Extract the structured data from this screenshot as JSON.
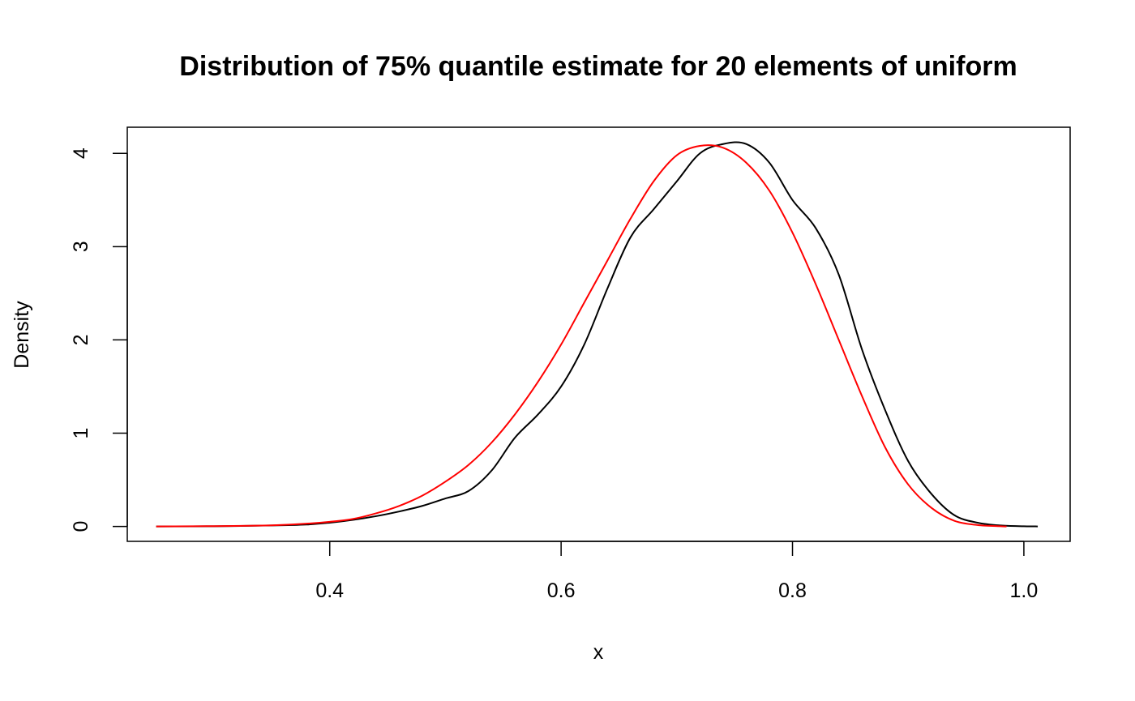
{
  "chart_data": {
    "type": "line",
    "title": "Distribution of 75% quantile estimate for 20 elements of uniform",
    "xlabel": "x",
    "ylabel": "Density",
    "xlim": [
      0.225,
      1.04
    ],
    "ylim": [
      -0.16,
      4.28
    ],
    "x_ticks": [
      0.4,
      0.6,
      0.8,
      1.0
    ],
    "x_tick_labels": [
      "0.4",
      "0.6",
      "0.8",
      "1.0"
    ],
    "y_ticks": [
      0,
      1,
      2,
      3,
      4
    ],
    "y_tick_labels": [
      "0",
      "1",
      "2",
      "3",
      "4"
    ],
    "grid": false,
    "legend": "none",
    "series": [
      {
        "color": "#000000",
        "x": [
          0.25,
          0.3,
          0.35,
          0.38,
          0.4,
          0.42,
          0.44,
          0.46,
          0.48,
          0.5,
          0.52,
          0.54,
          0.56,
          0.58,
          0.6,
          0.62,
          0.64,
          0.66,
          0.68,
          0.7,
          0.72,
          0.74,
          0.76,
          0.78,
          0.8,
          0.82,
          0.84,
          0.86,
          0.88,
          0.9,
          0.92,
          0.94,
          0.96,
          0.98,
          1.0,
          1.012
        ],
        "y": [
          0.0,
          0.002,
          0.01,
          0.02,
          0.04,
          0.07,
          0.11,
          0.16,
          0.22,
          0.3,
          0.38,
          0.6,
          0.95,
          1.2,
          1.5,
          1.95,
          2.55,
          3.1,
          3.4,
          3.7,
          4.0,
          4.1,
          4.1,
          3.9,
          3.5,
          3.2,
          2.7,
          1.9,
          1.25,
          0.7,
          0.35,
          0.12,
          0.04,
          0.01,
          0.002,
          0.0
        ]
      },
      {
        "color": "#ff0000",
        "x": [
          0.25,
          0.3,
          0.35,
          0.38,
          0.4,
          0.42,
          0.44,
          0.46,
          0.48,
          0.5,
          0.52,
          0.54,
          0.56,
          0.58,
          0.6,
          0.62,
          0.64,
          0.66,
          0.68,
          0.7,
          0.72,
          0.74,
          0.76,
          0.78,
          0.8,
          0.82,
          0.84,
          0.86,
          0.88,
          0.9,
          0.92,
          0.94,
          0.96,
          0.98,
          0.985
        ],
        "y": [
          0.0,
          0.003,
          0.012,
          0.03,
          0.05,
          0.08,
          0.14,
          0.22,
          0.33,
          0.48,
          0.66,
          0.9,
          1.2,
          1.55,
          1.95,
          2.4,
          2.85,
          3.3,
          3.7,
          3.98,
          4.08,
          4.06,
          3.9,
          3.6,
          3.15,
          2.6,
          2.0,
          1.4,
          0.85,
          0.45,
          0.2,
          0.06,
          0.015,
          0.002,
          0.0
        ]
      }
    ]
  }
}
